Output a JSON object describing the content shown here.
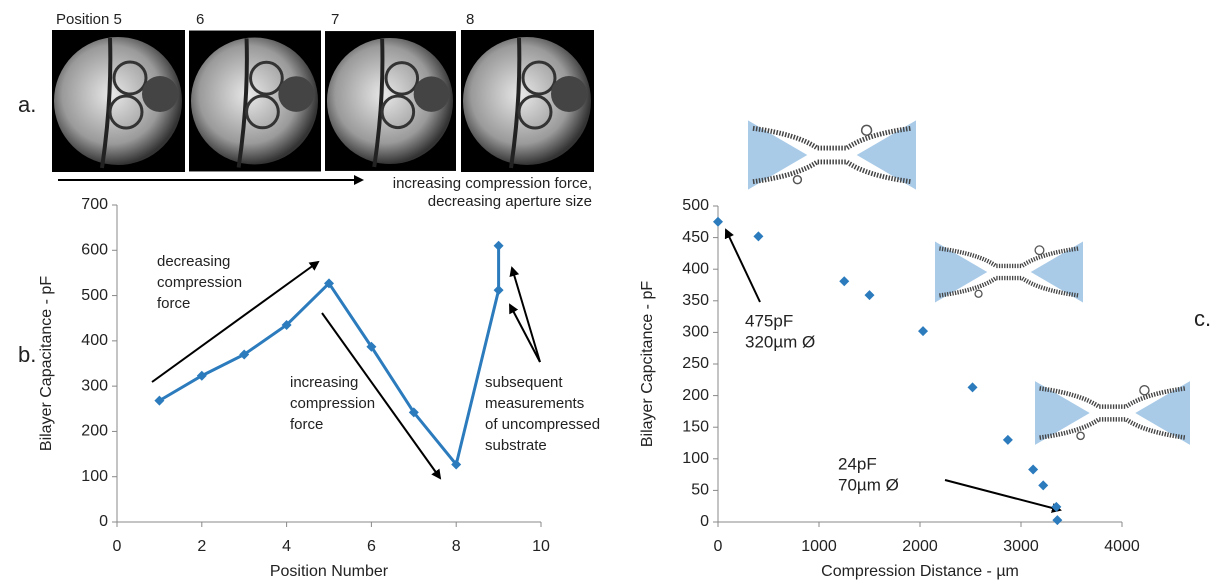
{
  "chart_data": [
    {
      "type": "line",
      "x": [
        1,
        2,
        3,
        4,
        5,
        6,
        7,
        8,
        9,
        9
      ],
      "values": [
        268,
        323,
        370,
        435,
        527,
        387,
        242,
        127,
        512,
        610
      ],
      "color": "#2b7bbd",
      "xlim": [
        0,
        10
      ],
      "xticks": [
        0,
        2,
        4,
        6,
        8,
        10
      ],
      "ylim": [
        0,
        700
      ],
      "yticks": [
        0,
        100,
        200,
        300,
        400,
        500,
        600,
        700
      ],
      "xlabel": "Position Number",
      "ylabel": "Bilayer Capacitance - pF",
      "annotations": [
        [
          "decreasing",
          "compression",
          "force"
        ],
        [
          "increasing",
          "compression",
          "force"
        ],
        [
          "subsequent",
          "measurements",
          "of uncompressed",
          "substrate"
        ]
      ]
    },
    {
      "type": "scatter",
      "x": [
        0,
        400,
        1250,
        1500,
        2030,
        2520,
        2870,
        3120,
        3220,
        3350,
        3360
      ],
      "values": [
        475,
        452,
        381,
        359,
        302,
        213,
        130,
        83,
        58,
        24,
        3
      ],
      "color": "#2b7bbd",
      "xlim": [
        0,
        4000
      ],
      "xticks": [
        0,
        1000,
        2000,
        3000,
        4000
      ],
      "ylim": [
        0,
        500
      ],
      "yticks": [
        0,
        50,
        100,
        150,
        200,
        250,
        300,
        350,
        400,
        450,
        500
      ],
      "xlabel": "Compression Distance - µm",
      "ylabel": "Bilayer Capcitance - pF",
      "annotations": [
        [
          "475pF",
          "320µm Ø"
        ],
        [
          "24pF",
          "70µm Ø"
        ]
      ]
    }
  ],
  "figure": {
    "panel_labels": [
      "a.",
      "b.",
      "c."
    ],
    "photo_labels": [
      "Position 5",
      "6",
      "7",
      "8"
    ],
    "caption": [
      "increasing compression force,",
      "decreasing aperture size"
    ]
  }
}
